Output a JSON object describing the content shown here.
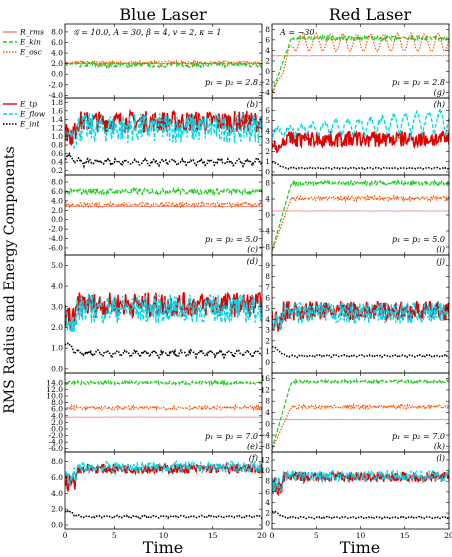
{
  "figure": {
    "col_titles": [
      "Blue Laser",
      "Red Laser"
    ],
    "y_label": "RMS Radius and Energy Components",
    "x_label": "Time",
    "params": "𝒢 = 10.0, A = 30, β = 4, v = 2, κ = 1",
    "red_A": "A = −30"
  },
  "legends": {
    "top": [
      {
        "label": "R_rms",
        "color": "#f08080",
        "dash": ""
      },
      {
        "label": "E_kin",
        "color": "#22cc22",
        "dash": "4,2"
      },
      {
        "label": "E_osc",
        "color": "#ff5500",
        "dash": "1.5,1.5"
      }
    ],
    "bottom": [
      {
        "label": "E_tp",
        "color": "#e00000",
        "dash": ""
      },
      {
        "label": "E_flow",
        "color": "#00d8e8",
        "dash": "4,2"
      },
      {
        "label": "E_int",
        "color": "#000000",
        "dash": "1.5,1.5"
      }
    ]
  },
  "chart_data": [
    {
      "type": "line",
      "panel": "left-1",
      "label": "",
      "p": "p₁ = p₂ = 2.8",
      "ylim": [
        -4.5,
        9.5
      ],
      "xlim": [
        0,
        20
      ],
      "yticks": [
        "-4.0",
        "-2.0",
        "0.0",
        "2.0",
        "4.0",
        "6.0",
        "8.0"
      ],
      "ytick_vals": [
        -4,
        -2,
        0,
        2,
        4,
        6,
        8
      ],
      "series": [
        {
          "name": "R_rms",
          "base": 2.0,
          "amp": 0.05
        },
        {
          "name": "E_kin",
          "base": 1.8,
          "amp": 0.5
        },
        {
          "name": "E_osc",
          "base": 2.2,
          "amp": 0.3
        }
      ]
    },
    {
      "type": "line",
      "panel": "left-2",
      "label": "(b)",
      "p": "",
      "ylim": [
        0.1,
        1.9
      ],
      "xlim": [
        0,
        20
      ],
      "yticks": [
        "0.2",
        "0.4",
        "0.6",
        "0.8",
        "1.0",
        "1.2",
        "1.4",
        "1.6",
        "1.8"
      ],
      "ytick_vals": [
        0.2,
        0.4,
        0.6,
        0.8,
        1.0,
        1.2,
        1.4,
        1.6,
        1.8
      ],
      "series": [
        {
          "name": "E_tp",
          "base": 1.35,
          "amp": 0.25
        },
        {
          "name": "E_flow",
          "base": 1.2,
          "amp": 0.35
        },
        {
          "name": "E_int",
          "base": 0.33,
          "amp": 0.12
        }
      ]
    },
    {
      "type": "line",
      "panel": "left-3",
      "label": "(c)",
      "p": "p₁ = p₂ = 5.0",
      "ylim": [
        -7.5,
        9.5
      ],
      "xlim": [
        0,
        20
      ],
      "yticks": [
        "-6.0",
        "-4.0",
        "-2.0",
        "0.0",
        "2.0",
        "4.0",
        "6.0",
        "8.0"
      ],
      "ytick_vals": [
        -6,
        -4,
        -2,
        0,
        2,
        4,
        6,
        8
      ],
      "series": [
        {
          "name": "R_rms",
          "base": 2.8,
          "amp": 0.05
        },
        {
          "name": "E_kin",
          "base": 6.0,
          "amp": 0.6
        },
        {
          "name": "E_osc",
          "base": 3.2,
          "amp": 0.5
        }
      ]
    },
    {
      "type": "line",
      "panel": "left-4",
      "label": "(d)",
      "p": "",
      "ylim": [
        -0.2,
        5.5
      ],
      "xlim": [
        0,
        20
      ],
      "yticks": [
        "0.0",
        "1.0",
        "2.0",
        "3.0",
        "4.0",
        "5.0"
      ],
      "ytick_vals": [
        0,
        1,
        2,
        3,
        4,
        5
      ],
      "series": [
        {
          "name": "E_tp",
          "base": 3.1,
          "amp": 0.6
        },
        {
          "name": "E_flow",
          "base": 2.9,
          "amp": 0.7
        },
        {
          "name": "E_int",
          "base": 0.6,
          "amp": 0.25
        }
      ]
    },
    {
      "type": "line",
      "panel": "left-5",
      "label": "(e)",
      "p": "p₁ = p₂ = 7.0",
      "ylim": [
        -7,
        17
      ],
      "xlim": [
        0,
        20
      ],
      "yticks": [
        "-6.0",
        "-4.0",
        "-2.0",
        "0.0",
        "2.0",
        "4.0",
        "6.0",
        "8.0",
        "10.0",
        "12.0",
        "14.0"
      ],
      "ytick_vals": [
        -6,
        -4,
        -2,
        0,
        2,
        4,
        6,
        8,
        10,
        12,
        14
      ],
      "series": [
        {
          "name": "R_rms",
          "base": 3.6,
          "amp": 0.05
        },
        {
          "name": "E_kin",
          "base": 14.0,
          "amp": 0.5
        },
        {
          "name": "E_osc",
          "base": 6.4,
          "amp": 0.6
        }
      ]
    },
    {
      "type": "line",
      "panel": "left-6",
      "label": "(f)",
      "p": "",
      "ylim": [
        -0.5,
        9.2
      ],
      "xlim": [
        0,
        20
      ],
      "yticks": [
        "0.0",
        "2.0",
        "4.0",
        "6.0",
        "8.0"
      ],
      "ytick_vals": [
        0,
        2,
        4,
        6,
        8
      ],
      "series": [
        {
          "name": "E_tp",
          "base": 7.1,
          "amp": 0.6
        },
        {
          "name": "E_flow",
          "base": 7.3,
          "amp": 0.7
        },
        {
          "name": "E_int",
          "base": 0.9,
          "amp": 0.25
        }
      ]
    },
    {
      "type": "line",
      "panel": "right-1",
      "label": "(g)",
      "p": "p₁ = p₂ = 2.8",
      "ylim": [
        -5,
        9
      ],
      "xlim": [
        0,
        20
      ],
      "yticks": [
        "−4",
        "−2",
        "0",
        "2",
        "4",
        "6",
        "8"
      ],
      "ytick_vals": [
        -4,
        -2,
        0,
        2,
        4,
        6,
        8
      ],
      "series": [
        {
          "name": "R_rms",
          "base": 3.0,
          "amp": 0.05
        },
        {
          "name": "E_kin",
          "base": 6.3,
          "amp": 0.4
        },
        {
          "name": "E_osc",
          "base": 5.5,
          "amp": 1.6
        }
      ]
    },
    {
      "type": "line",
      "panel": "right-2",
      "label": "(h)",
      "p": "",
      "ylim": [
        -0.3,
        7.2
      ],
      "xlim": [
        0,
        20
      ],
      "yticks": [
        "0",
        "1",
        "2",
        "3",
        "4",
        "5",
        "6"
      ],
      "ytick_vals": [
        0,
        1,
        2,
        3,
        4,
        5,
        6
      ],
      "series": [
        {
          "name": "E_tp",
          "base": 3.2,
          "amp": 0.8
        },
        {
          "name": "E_flow",
          "base": 3.5,
          "amp": 1.8
        },
        {
          "name": "E_int",
          "base": 0.3,
          "amp": 0.1
        }
      ]
    },
    {
      "type": "line",
      "panel": "right-3",
      "label": "(i)",
      "p": "p₁ = p₂ = 5.0",
      "ylim": [
        -10,
        10
      ],
      "xlim": [
        0,
        20
      ],
      "yticks": [
        "−8",
        "−4",
        "0",
        "4",
        "8"
      ],
      "ytick_vals": [
        -8,
        -4,
        0,
        4,
        8
      ],
      "series": [
        {
          "name": "R_rms",
          "base": 1.0,
          "amp": 0.05
        },
        {
          "name": "E_kin",
          "base": 8.0,
          "amp": 0.5
        },
        {
          "name": "E_osc",
          "base": 4.2,
          "amp": 0.6
        }
      ]
    },
    {
      "type": "line",
      "panel": "right-4",
      "label": "(j)",
      "p": "",
      "ylim": [
        -1,
        10
      ],
      "xlim": [
        0,
        20
      ],
      "yticks": [
        "0",
        "1",
        "2",
        "3",
        "4",
        "5",
        "6",
        "7",
        "8",
        "9"
      ],
      "ytick_vals": [
        0,
        1,
        2,
        3,
        4,
        5,
        6,
        7,
        8,
        9
      ],
      "series": [
        {
          "name": "E_tp",
          "base": 4.8,
          "amp": 0.9
        },
        {
          "name": "E_flow",
          "base": 4.6,
          "amp": 1.0
        },
        {
          "name": "E_int",
          "base": 0.5,
          "amp": 0.15
        }
      ]
    },
    {
      "type": "line",
      "panel": "right-5",
      "label": "(k)",
      "p": "p₁ = p₂ = 7.0",
      "ylim": [
        -10,
        18
      ],
      "xlim": [
        0,
        20
      ],
      "yticks": [
        "−8",
        "−4",
        "0",
        "4",
        "8",
        "12",
        "16"
      ],
      "ytick_vals": [
        -8,
        -4,
        0,
        4,
        8,
        12,
        16
      ],
      "series": [
        {
          "name": "R_rms",
          "base": 1.5,
          "amp": 0.05
        },
        {
          "name": "E_kin",
          "base": 15.0,
          "amp": 0.5
        },
        {
          "name": "E_osc",
          "base": 6.0,
          "amp": 0.7
        }
      ]
    },
    {
      "type": "line",
      "panel": "right-6",
      "label": "(l)",
      "p": "",
      "ylim": [
        -1,
        13.5
      ],
      "xlim": [
        0,
        20
      ],
      "yticks": [
        "0",
        "2",
        "4",
        "6",
        "8",
        "10",
        "12"
      ],
      "ytick_vals": [
        0,
        2,
        4,
        6,
        8,
        10,
        12
      ],
      "series": [
        {
          "name": "E_tp",
          "base": 8.8,
          "amp": 0.9
        },
        {
          "name": "E_flow",
          "base": 9.0,
          "amp": 1.0
        },
        {
          "name": "E_int",
          "base": 1.0,
          "amp": 0.25
        }
      ]
    }
  ],
  "xticks": {
    "left": [
      "0",
      "5",
      "10",
      "15",
      "20"
    ],
    "right": [
      "0",
      "5",
      "10",
      "15",
      "20"
    ],
    "vals": [
      0,
      5,
      10,
      15,
      20
    ]
  },
  "colors": {
    "R_rms": "#f08080",
    "E_kin": "#22cc22",
    "E_osc": "#ff5500",
    "E_tp": "#e00000",
    "E_flow": "#00d8e8",
    "E_int": "#000000"
  }
}
